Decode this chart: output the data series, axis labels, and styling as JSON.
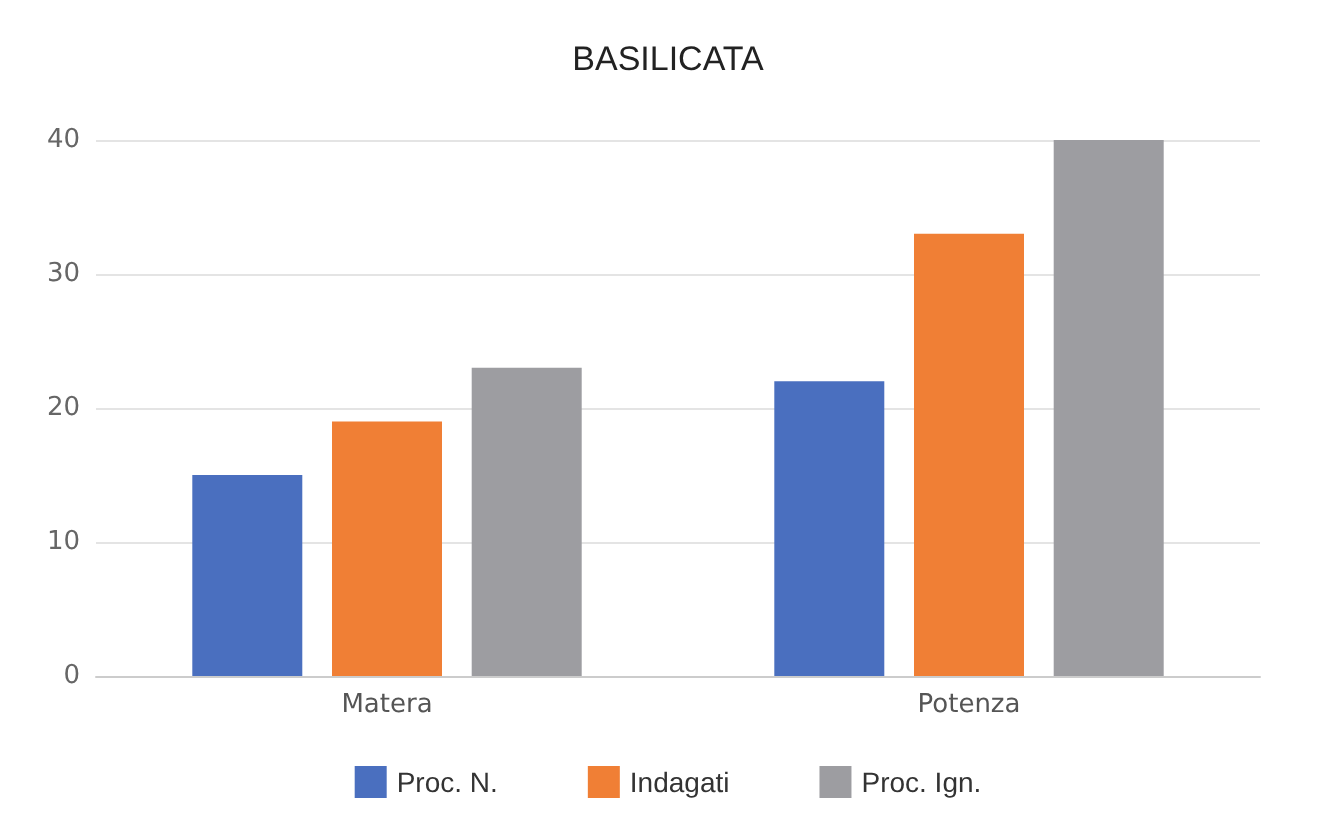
{
  "chart_data": {
    "type": "bar",
    "title": "BASILICATA",
    "categories": [
      "Matera",
      "Potenza"
    ],
    "series": [
      {
        "name": "Proc. N.",
        "color": "#4a6fbf",
        "values": [
          15,
          22
        ]
      },
      {
        "name": "Indagati",
        "color": "#f07f35",
        "values": [
          19,
          33
        ]
      },
      {
        "name": "Proc. Ign.",
        "color": "#9d9da1",
        "values": [
          23,
          40
        ]
      }
    ],
    "ylim": [
      0,
      40
    ],
    "yticks": [
      0,
      10,
      20,
      30,
      40
    ],
    "grid": "y",
    "legend": "bottom"
  }
}
